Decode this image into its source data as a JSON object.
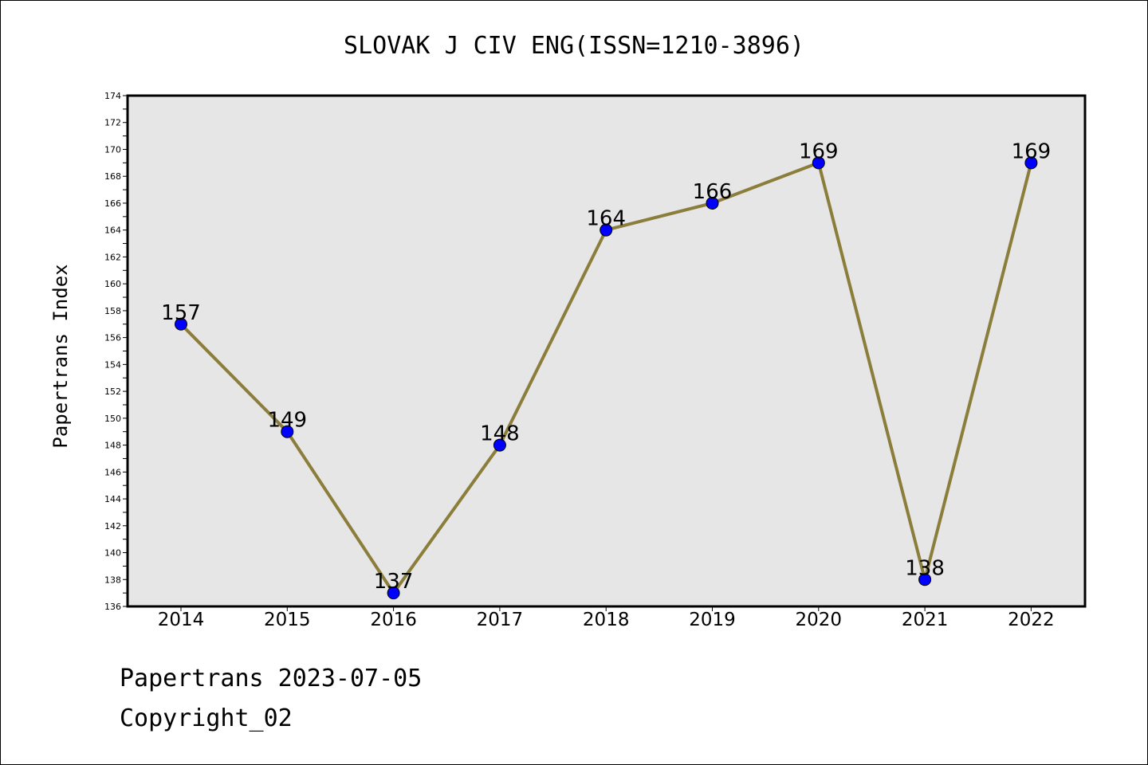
{
  "chart_data": {
    "type": "line",
    "title": "SLOVAK J CIV ENG(ISSN=1210-3896)",
    "xlabel": "",
    "ylabel": "Papertrans Index",
    "categories": [
      "2014",
      "2015",
      "2016",
      "2017",
      "2018",
      "2019",
      "2020",
      "2021",
      "2022"
    ],
    "series": [
      {
        "values": [
          157,
          149,
          137,
          148,
          164,
          166,
          169,
          138,
          169
        ]
      }
    ],
    "data_labels": [
      "157",
      "149",
      "137",
      "148",
      "164",
      "166",
      "169",
      "138",
      "169"
    ],
    "ylim": [
      136,
      174
    ],
    "yticks": [
      "136",
      "138",
      "140",
      "142",
      "144",
      "146",
      "148",
      "150",
      "152",
      "154",
      "156",
      "158",
      "160",
      "162",
      "164",
      "166",
      "168",
      "170",
      "172",
      "174"
    ],
    "grid": false,
    "legend": "none",
    "colors": {
      "line": "#8b7d3a",
      "marker": "#0000ff",
      "plot_background": "#e6e6e6"
    }
  },
  "footer": {
    "date_text": "Papertrans 2023-07-05",
    "copyright_text": "Copyright_02"
  }
}
